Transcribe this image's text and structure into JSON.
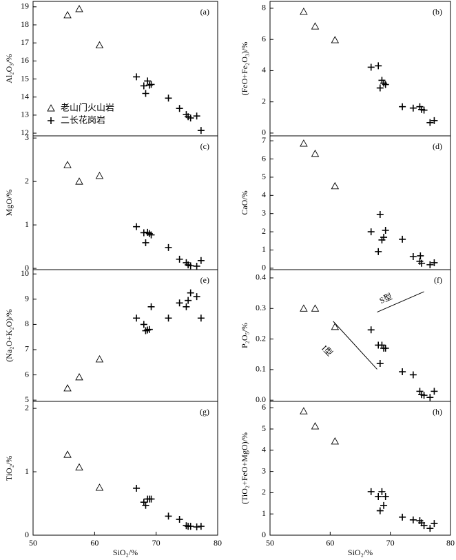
{
  "chart_data": [
    {
      "type": "scatter",
      "label": "(a)",
      "ylabel": "Al₂O₃/%",
      "xlim": [
        50,
        80
      ],
      "ylim": [
        11.85,
        19.3
      ],
      "yticks": [
        12,
        13,
        14,
        15,
        16,
        17,
        18,
        19
      ],
      "legend": "lower left",
      "series": [
        {
          "name": "老山门火山岩",
          "marker": "triangle",
          "color": "#000",
          "x": [
            55.6,
            57.5,
            60.8
          ],
          "values": [
            18.54,
            18.88,
            16.87
          ]
        },
        {
          "name": "二长花岗岩",
          "marker": "cross",
          "color": "#000",
          "x": [
            66.8,
            68.0,
            68.3,
            68.6,
            68.9,
            69.2,
            72.0,
            73.8,
            74.9,
            75.2,
            75.6,
            76.6,
            77.3
          ],
          "values": [
            15.12,
            14.62,
            14.2,
            14.89,
            14.66,
            14.7,
            13.94,
            13.37,
            13.03,
            12.91,
            12.84,
            12.95,
            12.15
          ]
        }
      ]
    },
    {
      "type": "scatter",
      "label": "(b)",
      "ylabel": "(FeO+Fe₂O₃)/%",
      "xlim": [
        50,
        80
      ],
      "ylim": [
        -0.18,
        8.44
      ],
      "yticks": [
        0,
        2,
        4,
        6,
        8
      ],
      "series": [
        {
          "marker": "triangle",
          "color": "#000",
          "x": [
            55.6,
            57.5,
            60.8
          ],
          "values": [
            7.78,
            6.84,
            5.96
          ]
        },
        {
          "marker": "cross",
          "color": "#000",
          "x": [
            66.8,
            68.0,
            68.3,
            68.6,
            68.9,
            69.2,
            72.0,
            73.8,
            74.9,
            75.2,
            75.6,
            76.6,
            77.3
          ],
          "values": [
            4.22,
            4.31,
            2.89,
            3.38,
            3.2,
            3.11,
            1.69,
            1.6,
            1.69,
            1.51,
            1.47,
            0.67,
            0.8
          ]
        }
      ]
    },
    {
      "type": "scatter",
      "label": "(c)",
      "ylabel": "MgO/%",
      "xlim": [
        50,
        80
      ],
      "ylim": [
        -0.03,
        3.05
      ],
      "yticks": [
        0,
        1,
        2,
        3
      ],
      "series": [
        {
          "marker": "triangle",
          "color": "#000",
          "x": [
            55.6,
            57.5,
            60.8
          ],
          "values": [
            2.38,
            2.0,
            2.13
          ]
        },
        {
          "marker": "cross",
          "color": "#000",
          "x": [
            66.8,
            68.0,
            68.3,
            68.6,
            68.9,
            69.2,
            72.0,
            73.8,
            74.9,
            75.2,
            75.6,
            76.6,
            77.3
          ],
          "values": [
            0.96,
            0.82,
            0.59,
            0.83,
            0.8,
            0.77,
            0.48,
            0.21,
            0.13,
            0.08,
            0.06,
            0.05,
            0.18
          ]
        }
      ]
    },
    {
      "type": "scatter",
      "label": "(d)",
      "ylabel": "CaO/%",
      "xlim": [
        50,
        80
      ],
      "ylim": [
        -0.08,
        7.27
      ],
      "yticks": [
        0,
        1,
        2,
        3,
        4,
        5,
        6,
        7
      ],
      "series": [
        {
          "marker": "triangle",
          "color": "#000",
          "x": [
            55.6,
            57.5,
            60.8
          ],
          "values": [
            6.85,
            6.29,
            4.51
          ]
        },
        {
          "marker": "cross",
          "color": "#000",
          "x": [
            66.8,
            68.0,
            68.3,
            68.6,
            68.9,
            69.2,
            72.0,
            73.8,
            74.9,
            75.0,
            75.2,
            76.6,
            77.3
          ],
          "values": [
            2.0,
            0.91,
            2.95,
            1.55,
            1.7,
            2.08,
            1.59,
            0.64,
            0.38,
            0.68,
            0.27,
            0.19,
            0.3
          ]
        }
      ]
    },
    {
      "type": "scatter",
      "label": "(e)",
      "ylabel": "(Na₂O+K₂O)/%",
      "xlim": [
        50,
        80
      ],
      "ylim": [
        4.95,
        10.17
      ],
      "yticks": [
        5,
        6,
        7,
        8,
        9,
        10
      ],
      "series": [
        {
          "marker": "triangle",
          "color": "#000",
          "x": [
            55.6,
            57.5,
            60.8
          ],
          "values": [
            5.47,
            5.91,
            6.62
          ]
        },
        {
          "marker": "cross",
          "color": "#000",
          "x": [
            66.8,
            68.0,
            68.3,
            68.6,
            68.9,
            69.2,
            72.0,
            73.8,
            74.9,
            75.2,
            75.6,
            76.6,
            77.3
          ],
          "values": [
            8.25,
            8.0,
            7.75,
            7.78,
            7.8,
            8.7,
            8.25,
            8.85,
            8.7,
            8.95,
            9.25,
            9.1,
            8.25
          ]
        }
      ]
    },
    {
      "type": "scatter",
      "label": "(f)",
      "ylabel": "P₂O₅/%",
      "xlim": [
        50,
        80
      ],
      "ylim": [
        -0.004,
        0.427
      ],
      "yticks": [
        {
          "value": 0,
          "label": "0.0"
        },
        0.1,
        0.2,
        0.3,
        0.4
      ],
      "annotations": [
        {
          "text": "S型",
          "x": 69.3,
          "y": 0.33
        },
        {
          "text": "I型",
          "x": 59.4,
          "y": 0.16
        }
      ],
      "lines": [
        {
          "x": [
            67.8,
            75.6
          ],
          "y": [
            0.288,
            0.355
          ]
        },
        {
          "x": [
            60.5,
            67.8
          ],
          "y": [
            0.258,
            0.101
          ]
        }
      ],
      "series": [
        {
          "marker": "triangle",
          "color": "#000",
          "x": [
            55.6,
            57.5,
            60.8
          ],
          "values": [
            0.3,
            0.3,
            0.24
          ]
        },
        {
          "marker": "cross",
          "color": "#000",
          "x": [
            66.8,
            68.0,
            68.3,
            68.6,
            68.9,
            69.2,
            72.0,
            73.8,
            74.9,
            75.2,
            75.6,
            76.6,
            77.3
          ],
          "values": [
            0.23,
            0.18,
            0.12,
            0.18,
            0.17,
            0.17,
            0.093,
            0.083,
            0.029,
            0.018,
            0.016,
            0.009,
            0.029
          ]
        }
      ]
    },
    {
      "type": "scatter",
      "label": "(g)",
      "ylabel": "TiO₂/%",
      "xlabel": "SiO₂/%",
      "xlim": [
        50,
        80
      ],
      "xticks": [
        50,
        60,
        70,
        80
      ],
      "ylim": [
        0,
        2.11
      ],
      "yticks": [
        0,
        1,
        2
      ],
      "series": [
        {
          "marker": "triangle",
          "color": "#000",
          "x": [
            55.6,
            57.5,
            60.8
          ],
          "values": [
            1.27,
            1.07,
            0.75
          ]
        },
        {
          "marker": "cross",
          "color": "#000",
          "x": [
            66.8,
            68.0,
            68.3,
            68.6,
            68.9,
            69.2,
            72.0,
            73.8,
            74.9,
            75.2,
            75.6,
            76.6,
            77.3
          ],
          "values": [
            0.74,
            0.52,
            0.47,
            0.57,
            0.57,
            0.57,
            0.3,
            0.25,
            0.15,
            0.14,
            0.14,
            0.13,
            0.14
          ]
        }
      ]
    },
    {
      "type": "scatter",
      "label": "(h)",
      "ylabel": "(TiO₂+FeO+MgO)/%",
      "xlabel": "SiO₂/%",
      "xlim": [
        50,
        80
      ],
      "xticks": [
        50,
        60,
        70,
        80
      ],
      "ylim": [
        0,
        6.3
      ],
      "yticks": [
        0,
        1,
        2,
        3,
        4,
        5,
        6
      ],
      "series": [
        {
          "marker": "triangle",
          "color": "#000",
          "x": [
            55.6,
            57.5,
            60.8
          ],
          "values": [
            5.84,
            5.13,
            4.42
          ]
        },
        {
          "marker": "cross",
          "color": "#000",
          "x": [
            66.8,
            68.0,
            68.3,
            68.6,
            68.9,
            69.2,
            72.0,
            73.8,
            74.9,
            75.2,
            75.6,
            76.6,
            77.3
          ],
          "values": [
            2.05,
            1.82,
            1.15,
            2.05,
            1.4,
            1.82,
            0.85,
            0.72,
            0.68,
            0.58,
            0.45,
            0.32,
            0.55
          ]
        }
      ]
    }
  ]
}
